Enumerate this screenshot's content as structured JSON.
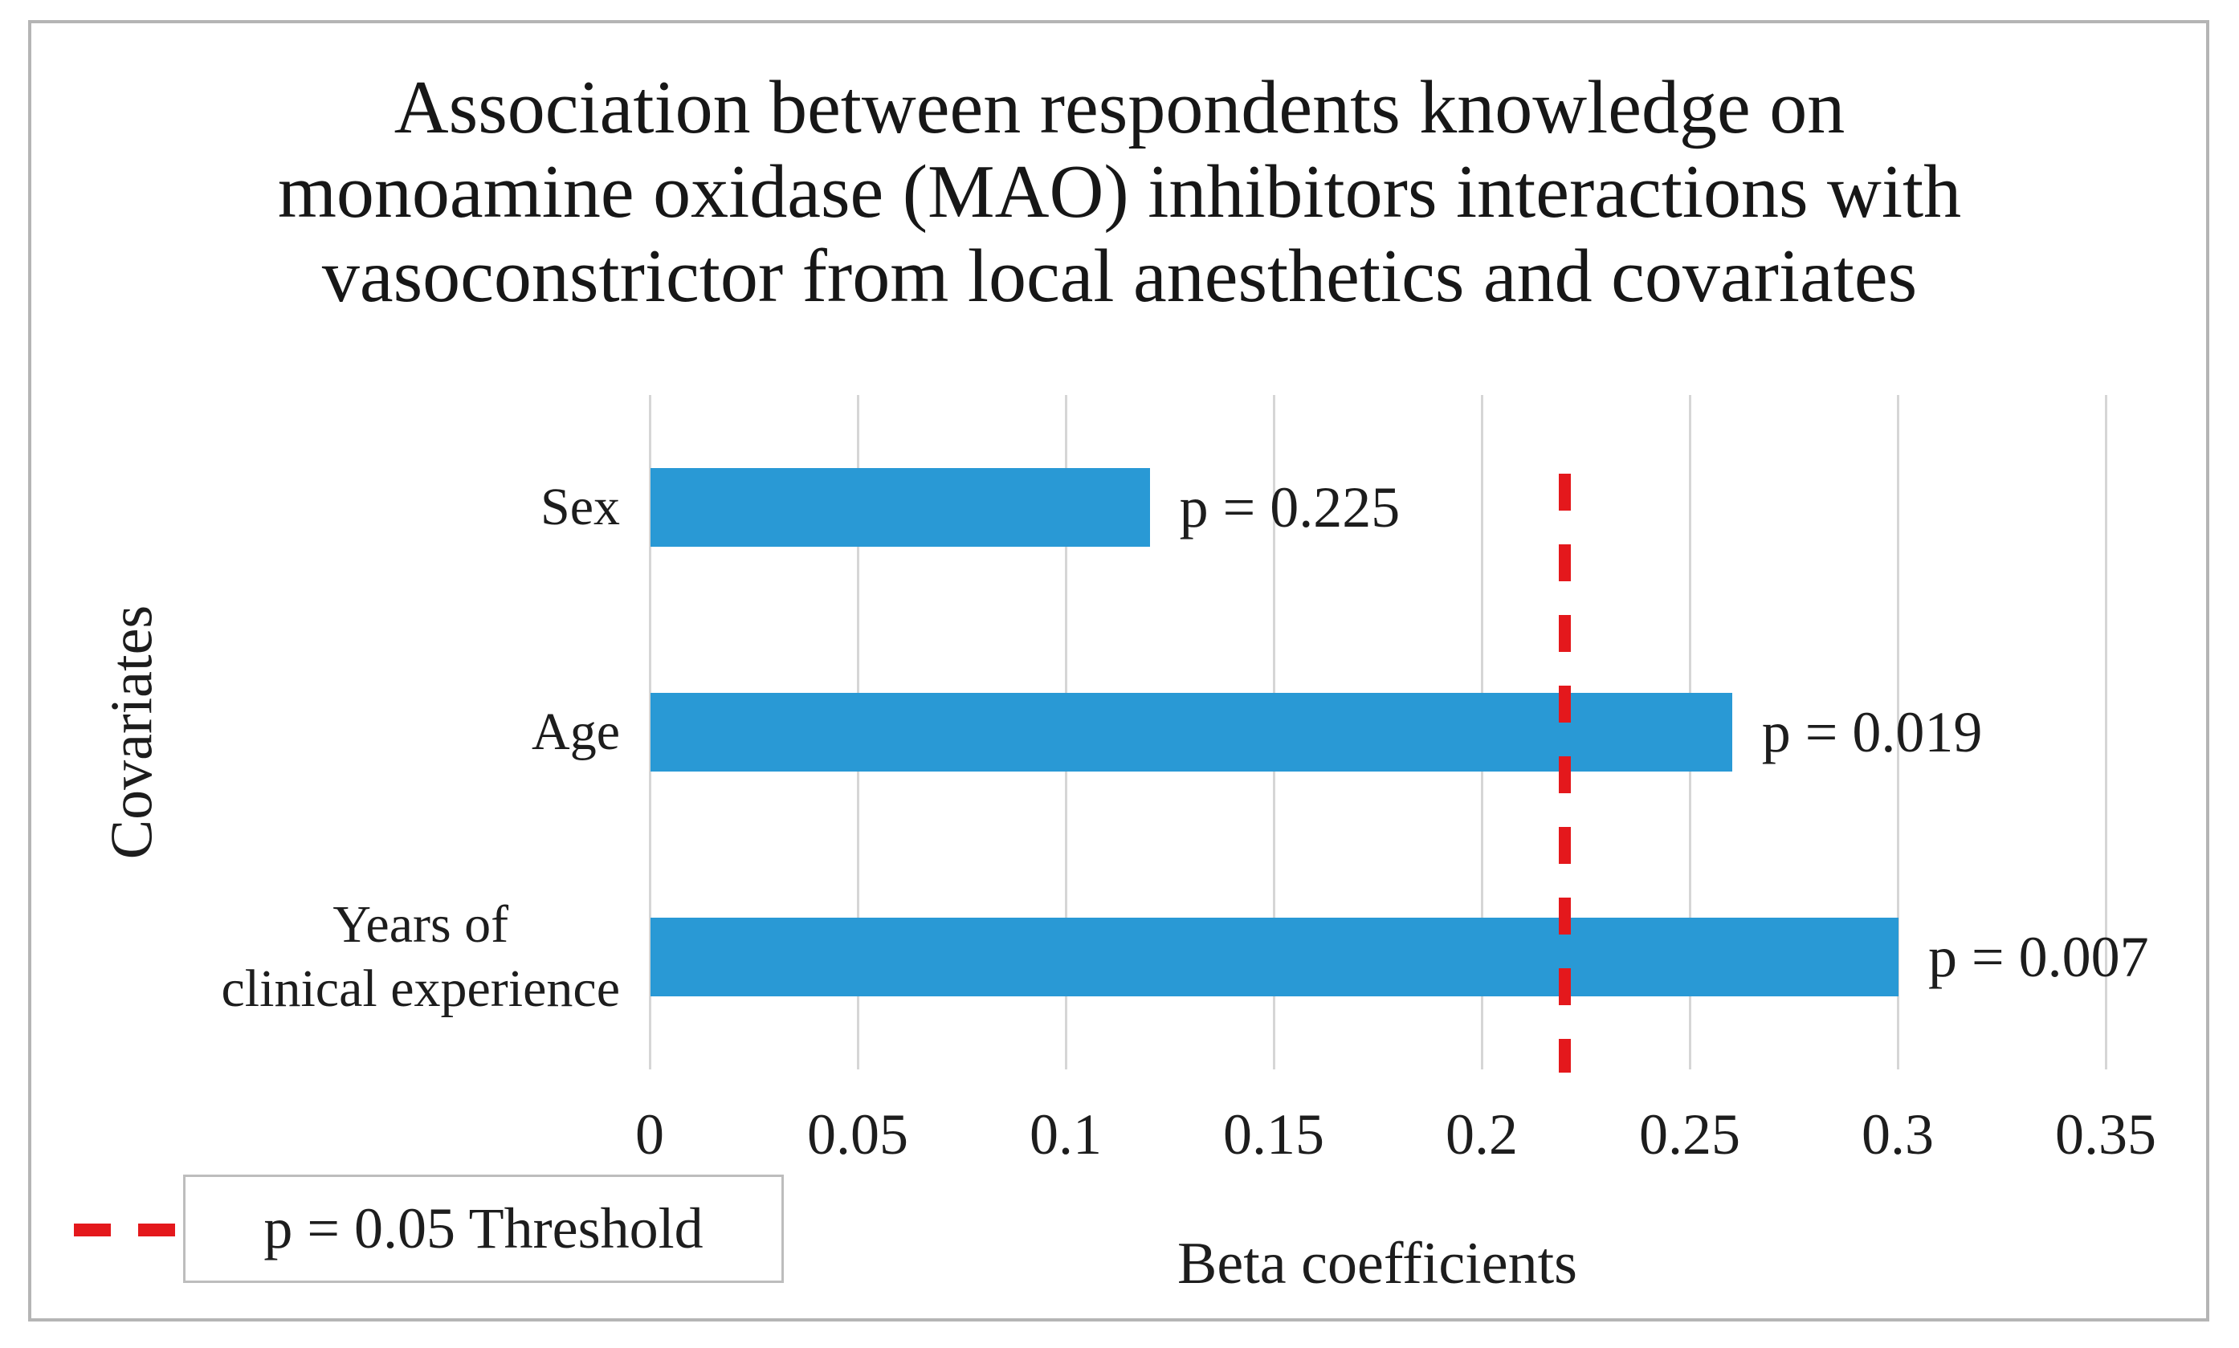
{
  "figure": {
    "title_lines": [
      "Association between respondents knowledge on",
      "monoamine oxidase (MAO) inhibitors interactions with",
      "vasoconstrictor from local anesthetics and covariates"
    ],
    "x_axis_label": "Beta coefficients",
    "y_axis_label": "Covariates",
    "legend_label": "p = 0.05 Threshold"
  },
  "chart_data": {
    "type": "bar",
    "orientation": "horizontal",
    "title": "Association between respondents knowledge on monoamine oxidase (MAO) inhibitors interactions with vasoconstrictor from local anesthetics and covariates",
    "categories": [
      "Sex",
      "Age",
      "Years of clinical experience"
    ],
    "category_label_lines": [
      [
        "Sex"
      ],
      [
        "Age"
      ],
      [
        "Years of",
        "clinical experience"
      ]
    ],
    "values": [
      0.12,
      0.26,
      0.3
    ],
    "point_labels": [
      "p = 0.225",
      "p = 0.019",
      "p = 0.007"
    ],
    "p_values": [
      0.225,
      0.019,
      0.007
    ],
    "xlabel": "Beta coefficients",
    "ylabel": "Covariates",
    "xlim": [
      0,
      0.35
    ],
    "xticks": [
      0,
      0.05,
      0.1,
      0.15,
      0.2,
      0.25,
      0.3,
      0.35
    ],
    "xtick_labels": [
      "0",
      "0.05",
      "0.1",
      "0.15",
      "0.2",
      "0.25",
      "0.3",
      "0.35"
    ],
    "grid": true,
    "legend_position": "bottom-left",
    "threshold_line": {
      "value": 0.22,
      "style": "dashed",
      "label": "p = 0.05 Threshold"
    },
    "colors": {
      "bar": "#2999d5",
      "threshold": "#e4181c",
      "gridline": "#d6d6d6",
      "border": "#b5b5b5",
      "text": "#1d1d1d"
    }
  }
}
